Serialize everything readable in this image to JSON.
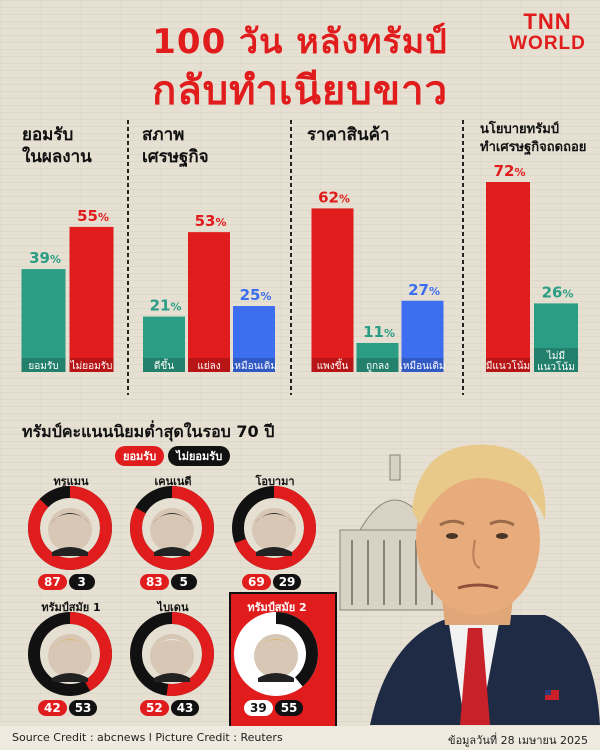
{
  "header": {
    "title_line1": "100 วัน หลังทรัมป์",
    "title_line2": "กลับทำเนียบขาว",
    "logo_line1": "TNN",
    "logo_line2": "WORLD"
  },
  "chart_data": [
    {
      "type": "bar",
      "title": [
        "ยอมรับ",
        "ในผลงาน"
      ],
      "categories": [
        "ยอมรับ",
        "ไม่ยอมรับ"
      ],
      "values": [
        39,
        55
      ],
      "colors": [
        "#2a9d84",
        "#e11c1c"
      ],
      "ylim": [
        0,
        100
      ]
    },
    {
      "type": "bar",
      "title": [
        "สภาพ",
        "เศรษฐกิจ"
      ],
      "categories": [
        "ดีขึ้น",
        "แย่ลง",
        "เหมือนเดิม"
      ],
      "values": [
        21,
        53,
        25
      ],
      "colors": [
        "#2a9d84",
        "#e11c1c",
        "#3d6ef0"
      ],
      "ylim": [
        0,
        100
      ]
    },
    {
      "type": "bar",
      "title": [
        "ราคาสินค้า"
      ],
      "categories": [
        "แพงขึ้น",
        "ถูกลง",
        "เหมือนเดิม"
      ],
      "values": [
        62,
        11,
        27
      ],
      "colors": [
        "#e11c1c",
        "#2a9d84",
        "#3d6ef0"
      ],
      "ylim": [
        0,
        100
      ]
    },
    {
      "type": "bar",
      "title": [
        "นโยบายทรัมป์",
        "ทำเศรษฐกิจถดถอย"
      ],
      "categories": [
        [
          "มีแนวโน้ม"
        ],
        [
          "ไม่มี",
          "แนวโน้ม"
        ]
      ],
      "values": [
        72,
        26
      ],
      "colors": [
        "#e11c1c",
        "#2a9d84"
      ],
      "ylim": [
        0,
        100
      ]
    }
  ],
  "comparison": {
    "title": "ทรัมป์คะแนนนิยมต่ำสุดในรอบ 70 ปี",
    "legend_approve": "ยอมรับ",
    "legend_disapprove": "ไม่ยอมรับ",
    "approve_color": "#e11c1c",
    "disapprove_color": "#111111",
    "presidents": [
      {
        "name": "ทรูแมน",
        "approve": 87,
        "disapprove": 3
      },
      {
        "name": "เคนเนดี",
        "approve": 83,
        "disapprove": 5
      },
      {
        "name": "โอบามา",
        "approve": 69,
        "disapprove": 29
      },
      {
        "name": "ทรัมป์สมัย 1",
        "approve": 42,
        "disapprove": 53
      },
      {
        "name": "ไบเดน",
        "approve": 52,
        "disapprove": 43
      },
      {
        "name": "ทรัมป์สมัย 2",
        "approve": 39,
        "disapprove": 55
      }
    ]
  },
  "footer": {
    "credit": "Source Credit : abcnews l Picture Credit : Reuters",
    "date": "ข้อมูลวันที่ 28 เมษายน 2025"
  }
}
